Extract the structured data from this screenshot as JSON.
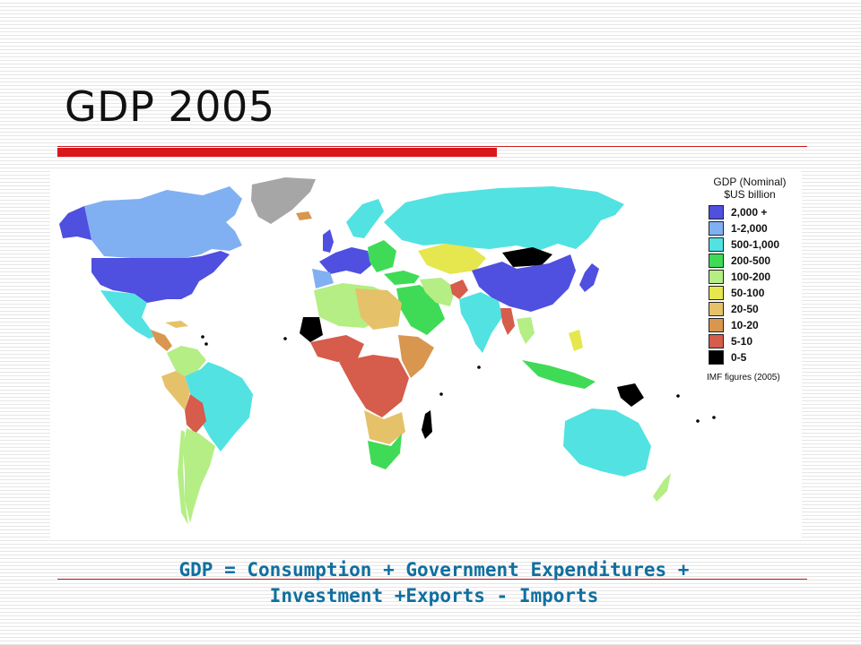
{
  "title": "GDP 2005",
  "legend": {
    "title_line1": "GDP (Nominal)",
    "title_line2": "$US billion",
    "source": "IMF figures (2005)",
    "bins": [
      {
        "label": "2,000 +",
        "color": "#4f4fe0"
      },
      {
        "label": "1-2,000",
        "color": "#80b0f2"
      },
      {
        "label": "500-1,000",
        "color": "#52e2e2"
      },
      {
        "label": "200-500",
        "color": "#3fdb56"
      },
      {
        "label": "100-200",
        "color": "#b4ee84"
      },
      {
        "label": "50-100",
        "color": "#e6e64e"
      },
      {
        "label": "20-50",
        "color": "#e5c26a"
      },
      {
        "label": "10-20",
        "color": "#d9964e"
      },
      {
        "label": "5-10",
        "color": "#d65c4c"
      },
      {
        "label": "0-5",
        "color": "#000000"
      }
    ],
    "no_data_color": "#a6a6a6"
  },
  "formula": {
    "line1": "GDP = Consumption + Government Expenditures +",
    "line2": "Investment +Exports - Imports"
  }
}
